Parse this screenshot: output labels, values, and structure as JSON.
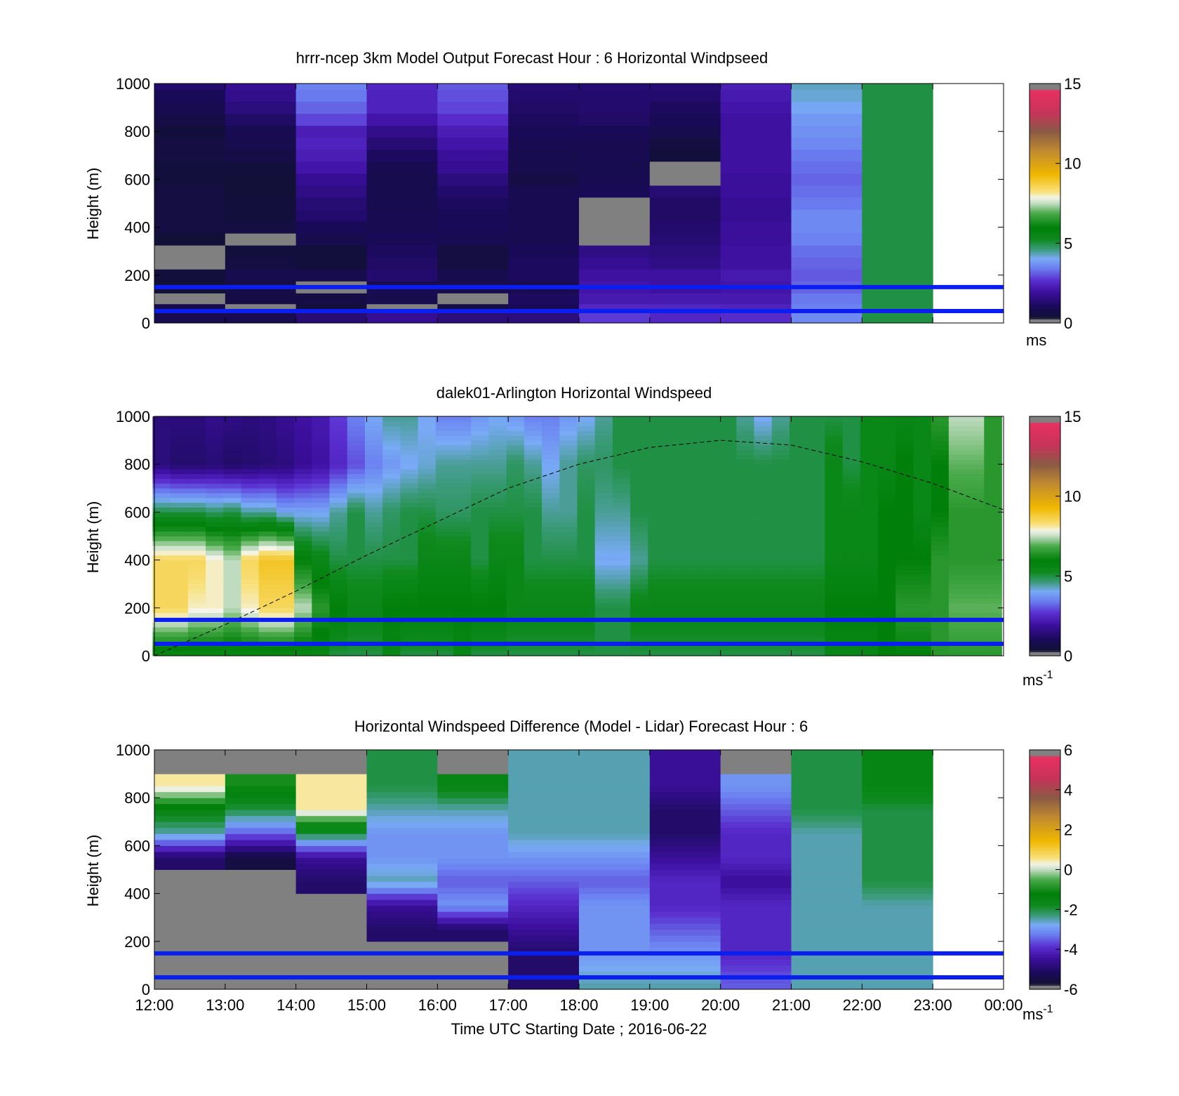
{
  "figure": {
    "xlabel": "Time UTC  Starting Date ; 2016-06-22"
  },
  "colors": {
    "overlay_line": "#0a1ef0",
    "missing": "#808080",
    "frame": "#000000"
  },
  "chart_data": [
    {
      "type": "heatmap",
      "title": "hrrr-ncep 3km Model Output   Forecast Hour : 6 Horizontal Windpseed",
      "ylabel": "Height (m)",
      "ylim": [
        0,
        1000
      ],
      "yticks": [
        "0",
        "200",
        "400",
        "600",
        "800",
        "1000"
      ],
      "x_start": "12:00",
      "x_end": "00:00",
      "hours": [
        "12:00",
        "13:00",
        "14:00",
        "15:00",
        "16:00",
        "17:00",
        "18:00",
        "19:00",
        "20:00",
        "21:00",
        "22:00",
        "23:00"
      ],
      "heights_m": [
        25,
        60,
        100,
        150,
        200,
        250,
        300,
        350,
        400,
        450,
        500,
        550,
        600,
        650,
        700,
        750,
        800,
        850,
        900,
        950,
        1000
      ],
      "values_mps": [
        [
          0.9,
          0.9,
          1.4,
          1.8,
          1.5,
          1.5,
          2.8,
          2.5,
          2.6,
          3.6,
          5.0,
          null
        ],
        [
          0.8,
          null,
          0.5,
          null,
          0.7,
          1.0,
          2.5,
          2.5,
          2.4,
          3.5,
          5.0,
          null
        ],
        [
          null,
          0.7,
          0.7,
          0.8,
          null,
          1.1,
          2.2,
          2.2,
          2.2,
          3.4,
          5.0,
          null
        ],
        [
          0.4,
          0.7,
          null,
          0.9,
          0.8,
          0.9,
          2.1,
          2.0,
          2.1,
          3.2,
          5.0,
          null
        ],
        [
          0.5,
          0.8,
          0.8,
          1.3,
          0.8,
          1.1,
          2.0,
          2.0,
          2.2,
          3.1,
          5.0,
          null
        ],
        [
          null,
          0.6,
          0.5,
          1.2,
          0.6,
          1.1,
          1.8,
          1.6,
          2.0,
          3.2,
          5.0,
          null
        ],
        [
          null,
          0.5,
          0.5,
          1.1,
          0.6,
          1.0,
          1.6,
          1.5,
          2.0,
          3.3,
          5.0,
          null
        ],
        [
          0.4,
          null,
          0.8,
          1.0,
          0.9,
          0.9,
          null,
          1.4,
          1.9,
          3.5,
          5.0,
          null
        ],
        [
          0.6,
          0.6,
          1.0,
          0.9,
          1.0,
          0.9,
          null,
          1.3,
          1.9,
          3.6,
          5.0,
          null
        ],
        [
          0.6,
          0.5,
          1.3,
          0.9,
          1.0,
          0.9,
          null,
          1.2,
          1.8,
          3.6,
          5.0,
          null
        ],
        [
          0.6,
          0.5,
          1.4,
          0.8,
          1.1,
          0.9,
          null,
          1.2,
          1.8,
          3.4,
          5.0,
          null
        ],
        [
          0.6,
          0.4,
          1.6,
          0.8,
          1.3,
          0.9,
          1.0,
          1.4,
          1.9,
          3.3,
          5.0,
          null
        ],
        [
          0.5,
          0.4,
          1.8,
          0.8,
          1.5,
          0.7,
          0.9,
          null,
          1.9,
          3.2,
          5.0,
          null
        ],
        [
          0.5,
          0.5,
          2.1,
          0.9,
          1.8,
          0.8,
          0.8,
          null,
          2.0,
          3.3,
          5.0,
          null
        ],
        [
          0.6,
          0.7,
          2.3,
          1.1,
          1.9,
          0.8,
          0.9,
          0.5,
          2.0,
          3.4,
          5.0,
          null
        ],
        [
          0.6,
          0.8,
          2.4,
          1.4,
          2.1,
          0.9,
          0.9,
          0.6,
          2.0,
          3.6,
          5.0,
          null
        ],
        [
          0.5,
          0.9,
          2.3,
          1.7,
          2.3,
          1.0,
          1.0,
          0.8,
          2.0,
          3.7,
          5.0,
          null
        ],
        [
          0.7,
          1.2,
          2.9,
          2.1,
          2.6,
          1.1,
          1.2,
          1.0,
          2.0,
          3.8,
          5.0,
          null
        ],
        [
          0.9,
          1.5,
          3.2,
          2.4,
          2.9,
          1.2,
          1.3,
          1.1,
          2.1,
          4.0,
          5.0,
          null
        ],
        [
          1.0,
          1.7,
          3.4,
          2.4,
          3.0,
          1.3,
          1.3,
          1.3,
          2.2,
          4.2,
          5.0,
          null
        ],
        [
          1.3,
          1.8,
          3.5,
          2.5,
          3.1,
          1.4,
          1.4,
          1.4,
          2.3,
          4.3,
          5.0,
          null
        ]
      ],
      "colorbar": {
        "min": 0,
        "max": 15,
        "ticks": [
          "0",
          "5",
          "10",
          "15"
        ],
        "unit": "ms"
      },
      "horizontal_lines_m": [
        50,
        150
      ]
    },
    {
      "type": "heatmap",
      "title": "dalek01-Arlington  Horizontal Windspeed",
      "ylabel": "Height (m)",
      "ylim": [
        0,
        1000
      ],
      "yticks": [
        "0",
        "200",
        "400",
        "600",
        "800",
        "1000"
      ],
      "x_start": "12:00",
      "x_end": "00:00",
      "time_hours": [
        12.1,
        12.35,
        12.6,
        12.85,
        13.1,
        13.35,
        13.6,
        13.85,
        14.1,
        14.35,
        14.6,
        14.85,
        15.1,
        15.35,
        15.6,
        15.85,
        16.1,
        16.35,
        16.6,
        16.85,
        17.1,
        17.35,
        17.6,
        17.85,
        18.1,
        18.35,
        18.6,
        18.85,
        19.1,
        19.35,
        19.6,
        19.85,
        20.1,
        20.35,
        20.6,
        20.85,
        21.1,
        21.35,
        21.6,
        21.85,
        22.1,
        22.35,
        22.6,
        22.85,
        23.1,
        23.35,
        23.6,
        23.85
      ],
      "profile_heights_m": [
        0,
        200,
        400,
        600,
        800,
        1000
      ],
      "profile_mps": [
        [
          5.5,
          8.5,
          8.5,
          5.0,
          1.5,
          1.5
        ],
        [
          5.5,
          8.5,
          8.5,
          5.0,
          1.3,
          1.5
        ],
        [
          5.5,
          8.0,
          8.5,
          5.0,
          1.3,
          1.5
        ],
        [
          5.5,
          8.0,
          8.0,
          4.8,
          1.4,
          1.7
        ],
        [
          5.5,
          7.5,
          7.5,
          5.0,
          1.2,
          1.6
        ],
        [
          5.5,
          8.0,
          8.5,
          4.5,
          1.3,
          1.5
        ],
        [
          5.5,
          8.5,
          9.0,
          4.5,
          1.4,
          1.6
        ],
        [
          5.5,
          8.5,
          9.0,
          4.0,
          1.5,
          1.8
        ],
        [
          5.5,
          7.5,
          6.0,
          4.0,
          1.8,
          2.0
        ],
        [
          5.5,
          6.5,
          5.5,
          4.0,
          2.0,
          2.2
        ],
        [
          5.0,
          6.0,
          5.0,
          4.5,
          2.5,
          2.8
        ],
        [
          5.0,
          5.5,
          5.0,
          5.0,
          3.0,
          3.5
        ],
        [
          5.0,
          5.5,
          5.0,
          4.5,
          3.5,
          4.0
        ],
        [
          5.5,
          6.0,
          5.0,
          4.8,
          3.8,
          4.5
        ],
        [
          5.0,
          6.0,
          5.0,
          5.0,
          4.0,
          4.5
        ],
        [
          5.0,
          6.0,
          5.5,
          5.0,
          4.2,
          4.0
        ],
        [
          5.0,
          6.0,
          5.5,
          4.8,
          4.5,
          3.5
        ],
        [
          5.5,
          6.0,
          5.5,
          4.8,
          4.5,
          3.5
        ],
        [
          5.0,
          6.0,
          5.0,
          5.0,
          4.5,
          3.8
        ],
        [
          5.0,
          6.0,
          5.5,
          5.0,
          4.5,
          4.0
        ],
        [
          5.0,
          5.5,
          5.5,
          5.0,
          4.8,
          3.8
        ],
        [
          5.0,
          5.5,
          5.0,
          5.0,
          4.5,
          3.5
        ],
        [
          5.0,
          5.5,
          5.0,
          4.5,
          4.0,
          3.5
        ],
        [
          5.0,
          5.5,
          5.0,
          4.5,
          4.5,
          3.8
        ],
        [
          5.0,
          5.5,
          5.0,
          5.0,
          4.8,
          4.0
        ],
        [
          5.0,
          5.0,
          4.0,
          4.5,
          4.8,
          4.5
        ],
        [
          5.0,
          5.0,
          4.0,
          4.5,
          5.0,
          5.0
        ],
        [
          5.0,
          5.5,
          4.5,
          5.0,
          5.0,
          5.0
        ],
        [
          5.0,
          5.5,
          5.0,
          5.0,
          5.0,
          5.0
        ],
        [
          5.0,
          5.5,
          5.0,
          5.0,
          5.0,
          5.0
        ],
        [
          5.0,
          5.5,
          5.0,
          5.0,
          5.0,
          5.0
        ],
        [
          5.0,
          5.5,
          5.0,
          5.0,
          5.0,
          5.0
        ],
        [
          5.0,
          5.5,
          5.0,
          5.0,
          5.0,
          5.0
        ],
        [
          5.0,
          5.5,
          5.0,
          5.0,
          5.0,
          4.5
        ],
        [
          5.0,
          5.5,
          5.0,
          5.0,
          5.0,
          4.0
        ],
        [
          5.0,
          5.5,
          5.0,
          5.0,
          5.0,
          4.5
        ],
        [
          5.0,
          5.5,
          5.0,
          5.0,
          5.0,
          5.0
        ],
        [
          5.0,
          5.5,
          5.0,
          5.0,
          5.0,
          5.0
        ],
        [
          5.5,
          6.0,
          5.5,
          5.5,
          5.5,
          5.0
        ],
        [
          5.5,
          6.0,
          5.5,
          5.5,
          5.0,
          5.0
        ],
        [
          5.5,
          6.0,
          5.5,
          5.5,
          5.5,
          5.5
        ],
        [
          6.0,
          6.0,
          6.0,
          6.0,
          5.5,
          5.5
        ],
        [
          6.0,
          6.5,
          6.0,
          6.0,
          6.0,
          5.5
        ],
        [
          6.0,
          6.5,
          6.0,
          5.5,
          5.5,
          5.5
        ],
        [
          6.5,
          6.5,
          6.5,
          6.0,
          6.0,
          6.5
        ],
        [
          6.5,
          7.0,
          6.5,
          6.5,
          7.0,
          7.5
        ],
        [
          6.5,
          7.0,
          6.5,
          6.5,
          7.0,
          7.5
        ],
        [
          6.5,
          7.0,
          6.5,
          6.5,
          6.5,
          6.5
        ]
      ],
      "colorbar": {
        "min": 0,
        "max": 15,
        "ticks": [
          "0",
          "5",
          "10",
          "15"
        ],
        "unit": "ms",
        "unit_superscript": "-1"
      },
      "horizontal_lines_m": [
        50,
        150
      ],
      "dashed_curve": {
        "x_hours": [
          12.0,
          13.0,
          14.0,
          15.0,
          16.0,
          17.0,
          18.0,
          19.0,
          20.0,
          21.0,
          22.0,
          23.0,
          24.0
        ],
        "y_m": [
          0,
          130,
          270,
          420,
          560,
          700,
          800,
          870,
          900,
          880,
          810,
          720,
          610
        ]
      }
    },
    {
      "type": "heatmap",
      "title": "Horizontal Windspeed Difference (Model - Lidar) Forecast Hour : 6",
      "ylabel": "Height (m)",
      "xlabel": "Time UTC  Starting Date ; 2016-06-22",
      "ylim": [
        0,
        1000
      ],
      "yticks": [
        "0",
        "200",
        "400",
        "600",
        "800",
        "1000"
      ],
      "xticks": [
        "12:00",
        "13:00",
        "14:00",
        "15:00",
        "16:00",
        "17:00",
        "18:00",
        "19:00",
        "20:00",
        "21:00",
        "22:00",
        "23:00",
        "00:00"
      ],
      "hours": [
        "12:00",
        "13:00",
        "14:00",
        "15:00",
        "16:00",
        "17:00",
        "18:00",
        "19:00",
        "20:00",
        "21:00",
        "22:00",
        "23:00"
      ],
      "profile_heights_m": [
        25,
        150,
        250,
        350,
        450,
        550,
        650,
        750,
        850,
        950
      ],
      "profile_difference_mps": [
        [
          null,
          null,
          null,
          null,
          null,
          -5.0,
          -2.5,
          -1.5,
          0.5,
          null
        ],
        [
          null,
          null,
          null,
          null,
          null,
          -5.5,
          -3.5,
          -2.0,
          -1.0,
          null
        ],
        [
          null,
          null,
          null,
          null,
          -5.0,
          -4.5,
          -2.0,
          0.5,
          0.5,
          null
        ],
        [
          null,
          null,
          -5.0,
          -4.5,
          -2.5,
          -3.0,
          -3.0,
          -2.5,
          -2.0,
          -2.0
        ],
        [
          null,
          null,
          -5.0,
          -3.0,
          -3.5,
          -3.0,
          -3.0,
          -2.5,
          -1.5,
          null
        ],
        [
          -5.0,
          -5.0,
          -4.5,
          -4.0,
          -3.5,
          -3.0,
          -2.5,
          -2.5,
          -2.5,
          -2.5
        ],
        [
          -2.5,
          -3.0,
          -3.0,
          -3.0,
          -3.5,
          -3.0,
          -2.5,
          -2.5,
          -2.5,
          -2.5
        ],
        [
          -2.5,
          -3.0,
          -3.5,
          -4.0,
          -4.0,
          -4.5,
          -5.0,
          -5.0,
          -4.5,
          -4.5
        ],
        [
          -3.5,
          -4.0,
          -4.0,
          -4.0,
          -4.5,
          -4.0,
          -4.0,
          -3.5,
          -3.0,
          null
        ],
        [
          -2.5,
          -2.5,
          -2.5,
          -2.5,
          -2.5,
          -2.5,
          -2.5,
          -2.0,
          -2.0,
          -2.0
        ],
        [
          -2.5,
          -2.5,
          -2.5,
          -2.5,
          -2.0,
          -2.0,
          -2.0,
          -2.0,
          -1.5,
          -1.5
        ],
        [
          null,
          null,
          null,
          null,
          null,
          null,
          null,
          null,
          null,
          null
        ]
      ],
      "colorbar": {
        "min": -6,
        "max": 6,
        "ticks": [
          "-6",
          "-4",
          "-2",
          "0",
          "2",
          "4",
          "6"
        ],
        "unit": "ms",
        "unit_superscript": "-1"
      },
      "horizontal_lines_m": [
        50,
        150
      ]
    }
  ]
}
